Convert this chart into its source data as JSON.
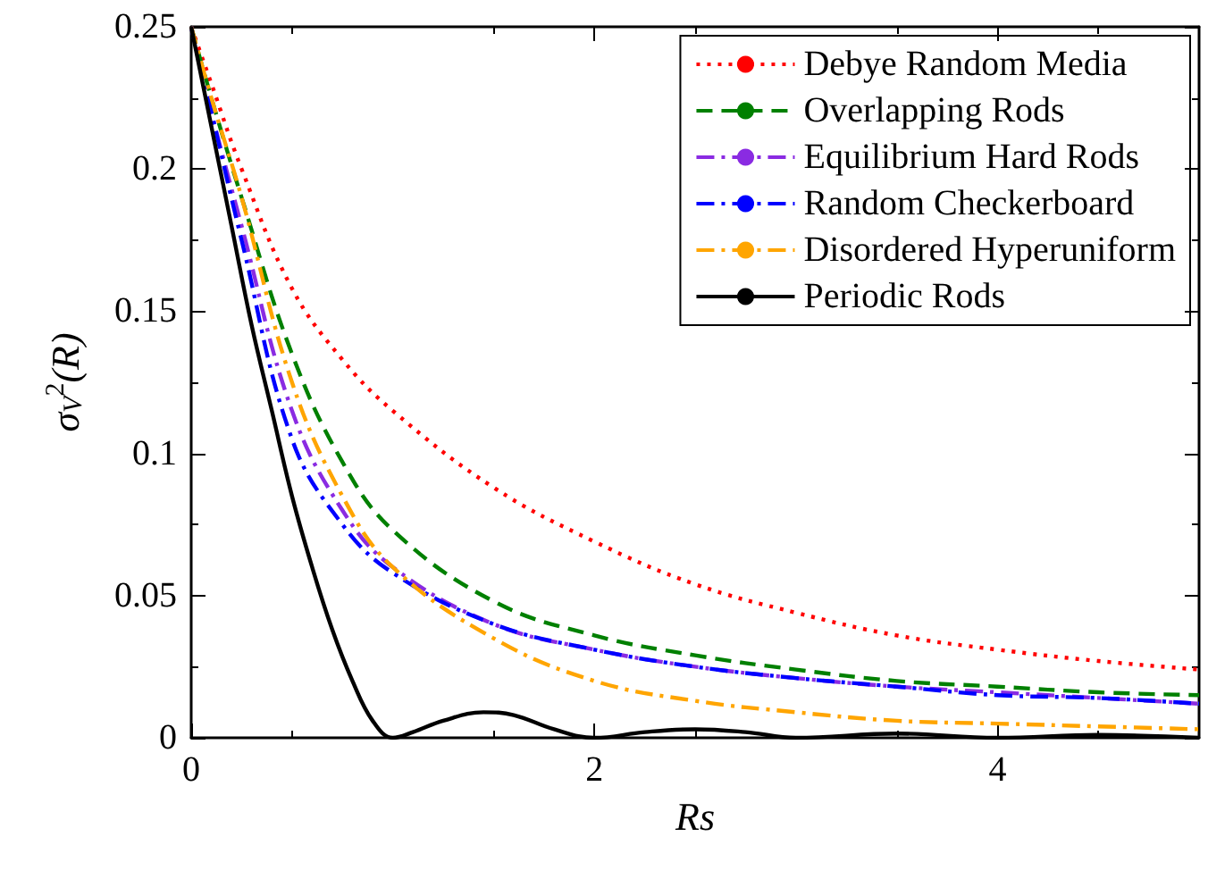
{
  "chart_data": {
    "type": "line",
    "xlabel": "Rs",
    "ylabel": "σ$_{V}$$^{2}$(R)",
    "xlim": [
      0,
      5
    ],
    "xticks": [
      0,
      2,
      4
    ],
    "ylim": [
      0,
      0.25
    ],
    "yticks": [
      0,
      0.05,
      0.1,
      0.15,
      0.2,
      0.25
    ],
    "legend": "top right",
    "grid": false,
    "marker": "none",
    "series": [
      {
        "name": "Debye Random Media",
        "color": "#ff0000",
        "line_style": "dotted",
        "x": [
          0,
          0.1,
          0.25,
          0.5,
          0.75,
          1,
          1.5,
          2,
          2.5,
          3,
          3.5,
          4,
          4.5,
          5
        ],
        "values": [
          0.25,
          0.23,
          0.2,
          0.158,
          0.133,
          0.115,
          0.088,
          0.069,
          0.054,
          0.044,
          0.036,
          0.031,
          0.027,
          0.024
        ]
      },
      {
        "name": "Overlapping Rods",
        "color": "#008000",
        "line_style": "dashed",
        "x": [
          0,
          0.1,
          0.25,
          0.5,
          0.75,
          1,
          1.5,
          2,
          2.5,
          3,
          3.5,
          4,
          4.5,
          5
        ],
        "values": [
          0.25,
          0.225,
          0.19,
          0.135,
          0.097,
          0.073,
          0.048,
          0.036,
          0.029,
          0.024,
          0.02,
          0.018,
          0.016,
          0.015
        ]
      },
      {
        "name": "Equilibrium Hard Rods",
        "color": "#8a2be2",
        "line_style": "dashdot",
        "x": [
          0,
          0.1,
          0.25,
          0.5,
          0.75,
          1,
          1.5,
          2,
          2.5,
          3,
          3.5,
          4,
          4.5,
          5
        ],
        "values": [
          0.25,
          0.22,
          0.18,
          0.115,
          0.08,
          0.06,
          0.04,
          0.031,
          0.025,
          0.021,
          0.018,
          0.016,
          0.014,
          0.012
        ]
      },
      {
        "name": "Random Checkerboard",
        "color": "#0000ff",
        "line_style": "dashdot",
        "x": [
          0,
          0.1,
          0.25,
          0.5,
          0.75,
          1,
          1.5,
          2,
          2.5,
          3,
          3.5,
          4,
          4.5,
          5
        ],
        "values": [
          0.25,
          0.22,
          0.175,
          0.105,
          0.075,
          0.058,
          0.04,
          0.031,
          0.025,
          0.021,
          0.018,
          0.015,
          0.014,
          0.012
        ]
      },
      {
        "name": "Disordered Hyperuniform",
        "color": "#ffa500",
        "line_style": "dashdot",
        "x": [
          0,
          0.1,
          0.25,
          0.5,
          0.75,
          1,
          1.5,
          2,
          2.5,
          3,
          3.5,
          4,
          4.5,
          5
        ],
        "values": [
          0.25,
          0.225,
          0.19,
          0.125,
          0.085,
          0.06,
          0.035,
          0.02,
          0.013,
          0.009,
          0.006,
          0.005,
          0.004,
          0.003
        ]
      },
      {
        "name": "Periodic Rods",
        "color": "#000000",
        "line_style": "solid",
        "x": [
          0,
          0.1,
          0.2,
          0.3,
          0.4,
          0.5,
          0.6,
          0.7,
          0.8,
          0.9,
          1,
          1.1,
          1.25,
          1.45,
          1.6,
          1.8,
          2,
          2.25,
          2.5,
          2.75,
          3,
          3.5,
          4,
          4.5,
          5
        ],
        "values": [
          0.25,
          0.215,
          0.18,
          0.145,
          0.115,
          0.085,
          0.06,
          0.038,
          0.02,
          0.006,
          0,
          0.002,
          0.006,
          0.009,
          0.008,
          0.003,
          0,
          0.002,
          0.003,
          0.002,
          0,
          0.0015,
          0,
          0.001,
          0
        ]
      }
    ]
  }
}
